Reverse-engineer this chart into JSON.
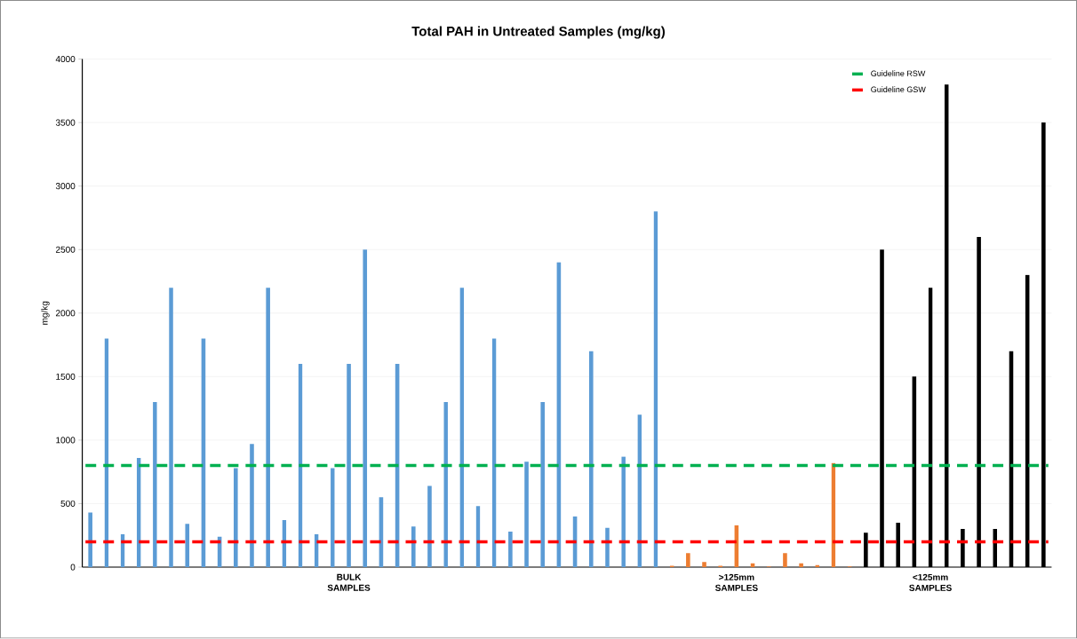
{
  "chart_data": {
    "type": "bar",
    "title": "Total PAH in Untreated Samples (mg/kg)",
    "ylabel": "mg/kg",
    "categories": [
      null,
      null,
      null,
      null,
      null,
      null,
      null,
      null,
      null,
      null,
      null,
      null,
      null,
      null,
      null,
      null,
      "BULK SAMPLES",
      null,
      null,
      null,
      null,
      null,
      null,
      null,
      null,
      null,
      null,
      null,
      null,
      null,
      null,
      null,
      null,
      null,
      null,
      null,
      null,
      null,
      null,
      null,
      ">125mm SAMPLES",
      null,
      null,
      null,
      null,
      null,
      null,
      null,
      null,
      null,
      null,
      null,
      "<125mm SAMPLES",
      null,
      null,
      null,
      null,
      null,
      null,
      null
    ],
    "values": [
      430,
      1800,
      260,
      860,
      1300,
      2200,
      340,
      1800,
      240,
      780,
      970,
      2200,
      370,
      1600,
      260,
      780,
      1600,
      2500,
      550,
      1600,
      320,
      640,
      1300,
      2200,
      480,
      1800,
      280,
      830,
      1300,
      2400,
      400,
      1700,
      310,
      870,
      1200,
      2800,
      10,
      110,
      40,
      10,
      330,
      30,
      5,
      110,
      30,
      15,
      820,
      5,
      270,
      2500,
      350,
      1500,
      2200,
      3800,
      300,
      2600,
      300,
      1700,
      2300,
      3500
    ],
    "colors": [
      "#5b9bd5",
      "#5b9bd5",
      "#5b9bd5",
      "#5b9bd5",
      "#5b9bd5",
      "#5b9bd5",
      "#5b9bd5",
      "#5b9bd5",
      "#5b9bd5",
      "#5b9bd5",
      "#5b9bd5",
      "#5b9bd5",
      "#5b9bd5",
      "#5b9bd5",
      "#5b9bd5",
      "#5b9bd5",
      "#5b9bd5",
      "#5b9bd5",
      "#5b9bd5",
      "#5b9bd5",
      "#5b9bd5",
      "#5b9bd5",
      "#5b9bd5",
      "#5b9bd5",
      "#5b9bd5",
      "#5b9bd5",
      "#5b9bd5",
      "#5b9bd5",
      "#5b9bd5",
      "#5b9bd5",
      "#5b9bd5",
      "#5b9bd5",
      "#5b9bd5",
      "#5b9bd5",
      "#5b9bd5",
      "#5b9bd5",
      "#ed7d31",
      "#ed7d31",
      "#ed7d31",
      "#ed7d31",
      "#ed7d31",
      "#ed7d31",
      "#ed7d31",
      "#ed7d31",
      "#ed7d31",
      "#ed7d31",
      "#ed7d31",
      "#ed7d31",
      "#000000",
      "#000000",
      "#000000",
      "#000000",
      "#000000",
      "#000000",
      "#000000",
      "#000000",
      "#000000",
      "#000000",
      "#000000",
      "#000000"
    ],
    "ylim": [
      0,
      4000
    ],
    "yticks": [
      0,
      500,
      1000,
      1500,
      2000,
      2500,
      3000,
      3500,
      4000
    ],
    "grid": "y",
    "legend": "top right",
    "ref_lines": [
      {
        "axis": "y",
        "value": 800,
        "label": "Guideline RSW",
        "color": "#00b050",
        "line_style": "dashed"
      },
      {
        "axis": "y",
        "value": 200,
        "label": "Guideline GSW",
        "color": "#ff0000",
        "line_style": "dashed"
      }
    ]
  }
}
